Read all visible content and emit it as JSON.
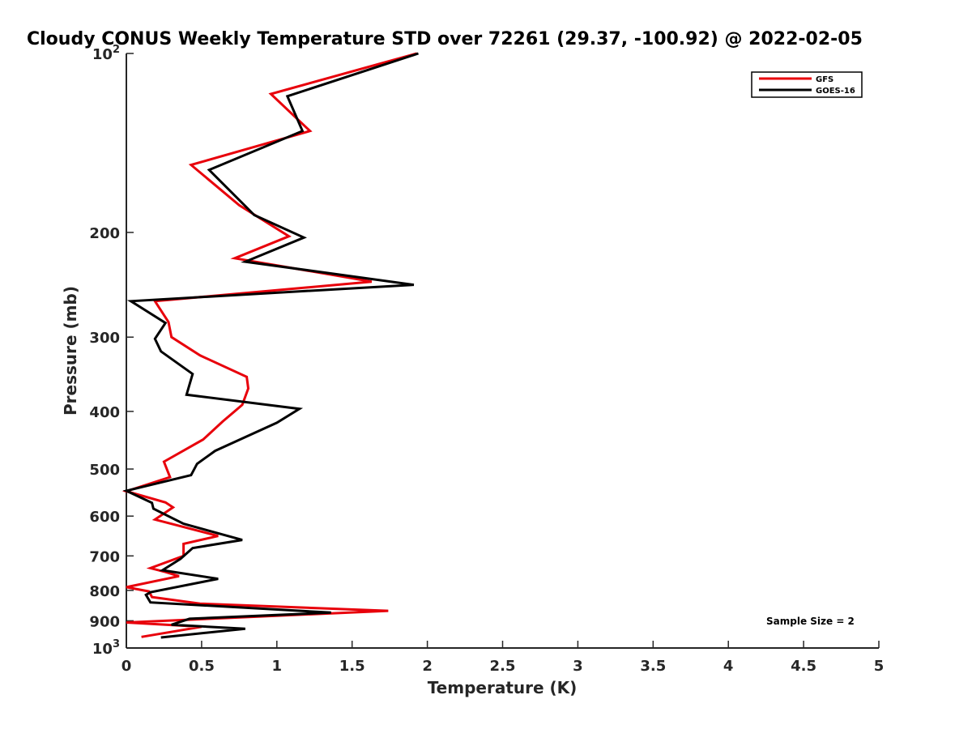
{
  "chart_data": {
    "type": "line",
    "title": "Cloudy CONUS Weekly Temperature STD over 72261 (29.37, -100.92) @ 2022-02-05",
    "xlabel": "Temperature (K)",
    "ylabel": "Pressure (mb)",
    "xlim": [
      0,
      5
    ],
    "ylim": [
      100,
      1000
    ],
    "y_scale": "log",
    "y_reversed": true,
    "grid": false,
    "legend_position": "top-right",
    "x_ticks": [
      "0",
      "0.5",
      "1",
      "1.5",
      "2",
      "2.5",
      "3",
      "3.5",
      "4",
      "4.5",
      "5"
    ],
    "y_ticks": [
      {
        "value": 100,
        "base": "10",
        "exp": "2"
      },
      {
        "value": 200,
        "label": "200"
      },
      {
        "value": 300,
        "label": "300"
      },
      {
        "value": 400,
        "label": "400"
      },
      {
        "value": 500,
        "label": "500"
      },
      {
        "value": 600,
        "label": "600"
      },
      {
        "value": 700,
        "label": "700"
      },
      {
        "value": 800,
        "label": "800"
      },
      {
        "value": 900,
        "label": "900"
      },
      {
        "value": 1000,
        "base": "10",
        "exp": "3"
      }
    ],
    "annotation": "Sample Size = 2",
    "series": [
      {
        "name": "GFS",
        "color": "#e8000b",
        "points": [
          [
            1.93,
            100
          ],
          [
            0.96,
            117
          ],
          [
            1.22,
            135
          ],
          [
            0.43,
            154
          ],
          [
            0.75,
            180
          ],
          [
            1.08,
            203
          ],
          [
            0.72,
            221
          ],
          [
            1.63,
            242
          ],
          [
            0.19,
            261
          ],
          [
            0.28,
            283
          ],
          [
            0.3,
            300
          ],
          [
            0.49,
            322
          ],
          [
            0.8,
            350
          ],
          [
            0.81,
            366
          ],
          [
            0.77,
            390
          ],
          [
            0.64,
            416
          ],
          [
            0.51,
            446
          ],
          [
            0.25,
            486
          ],
          [
            0.29,
            516
          ],
          [
            0.0,
            545
          ],
          [
            0.26,
            569
          ],
          [
            0.31,
            580
          ],
          [
            0.19,
            608
          ],
          [
            0.61,
            648
          ],
          [
            0.38,
            668
          ],
          [
            0.38,
            700
          ],
          [
            0.16,
            734
          ],
          [
            0.26,
            745
          ],
          [
            0.35,
            757
          ],
          [
            0.0,
            790
          ],
          [
            0.15,
            803
          ],
          [
            0.17,
            821
          ],
          [
            0.49,
            842
          ],
          [
            1.74,
            866
          ],
          [
            0.0,
            906
          ],
          [
            0.5,
            921
          ],
          [
            0.1,
            958
          ]
        ]
      },
      {
        "name": "GOES-16",
        "color": "#000000",
        "points": [
          [
            1.94,
            100
          ],
          [
            1.07,
            118
          ],
          [
            1.17,
            135
          ],
          [
            0.55,
            157
          ],
          [
            0.85,
            187
          ],
          [
            1.18,
            204
          ],
          [
            0.79,
            224
          ],
          [
            1.91,
            245
          ],
          [
            0.03,
            261
          ],
          [
            0.26,
            284
          ],
          [
            0.19,
            302
          ],
          [
            0.23,
            317
          ],
          [
            0.44,
            346
          ],
          [
            0.4,
            375
          ],
          [
            1.15,
            396
          ],
          [
            1.0,
            418
          ],
          [
            0.78,
            443
          ],
          [
            0.59,
            466
          ],
          [
            0.47,
            490
          ],
          [
            0.43,
            512
          ],
          [
            0.0,
            544
          ],
          [
            0.17,
            570
          ],
          [
            0.18,
            583
          ],
          [
            0.38,
            618
          ],
          [
            0.77,
            658
          ],
          [
            0.44,
            679
          ],
          [
            0.36,
            708
          ],
          [
            0.24,
            740
          ],
          [
            0.61,
            765
          ],
          [
            0.16,
            806
          ],
          [
            0.13,
            814
          ],
          [
            0.16,
            838
          ],
          [
            1.36,
            872
          ],
          [
            0.42,
            893
          ],
          [
            0.3,
            914
          ],
          [
            0.79,
            928
          ],
          [
            0.23,
            960
          ]
        ]
      }
    ]
  }
}
